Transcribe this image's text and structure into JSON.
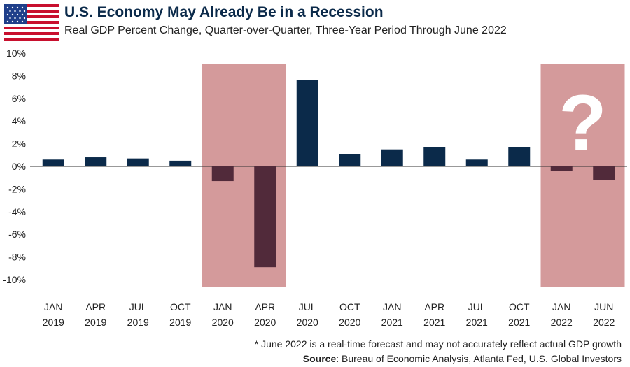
{
  "header": {
    "title": "U.S. Economy May Already Be in a Recession",
    "subtitle": "Real GDP Percent Change, Quarter-over-Quarter, Three-Year Period Through June 2022",
    "flag_icon": "us-flag-icon"
  },
  "footer": {
    "footnote": "* June 2022 is a real-time forecast and may not accurately reflect actual GDP growth",
    "source_label": "Source",
    "source_text": ": Bureau of Economic Analysis, Atlanta Fed, U.S. Global Investors"
  },
  "chart_data": {
    "type": "bar",
    "categories": [
      [
        "JAN",
        "2019"
      ],
      [
        "APR",
        "2019"
      ],
      [
        "JUL",
        "2019"
      ],
      [
        "OCT",
        "2019"
      ],
      [
        "JAN",
        "2020"
      ],
      [
        "APR",
        "2020"
      ],
      [
        "JUL",
        "2020"
      ],
      [
        "OCT",
        "2020"
      ],
      [
        "JAN",
        "2021"
      ],
      [
        "APR",
        "2021"
      ],
      [
        "JUL",
        "2021"
      ],
      [
        "OCT",
        "2021"
      ],
      [
        "JAN",
        "2022"
      ],
      [
        "JUN",
        "2022"
      ]
    ],
    "values": [
      0.6,
      0.8,
      0.7,
      0.5,
      -1.3,
      -8.9,
      7.6,
      1.1,
      1.5,
      1.7,
      0.6,
      1.7,
      -0.4,
      -1.2
    ],
    "ylim": [
      -10,
      10
    ],
    "yticks": [
      -10,
      -8,
      -6,
      -4,
      -2,
      0,
      2,
      4,
      6,
      8,
      10
    ],
    "ytick_suffix": "%",
    "recession_shading": [
      {
        "from_index": 4,
        "to_index": 5
      },
      {
        "from_index": 12,
        "to_index": 13,
        "annotation": "?"
      }
    ],
    "colors": {
      "positive": "#0b2a4a",
      "negative": "#512a3a",
      "shading": "#d49a9b",
      "annotation": "#ffffff"
    }
  }
}
